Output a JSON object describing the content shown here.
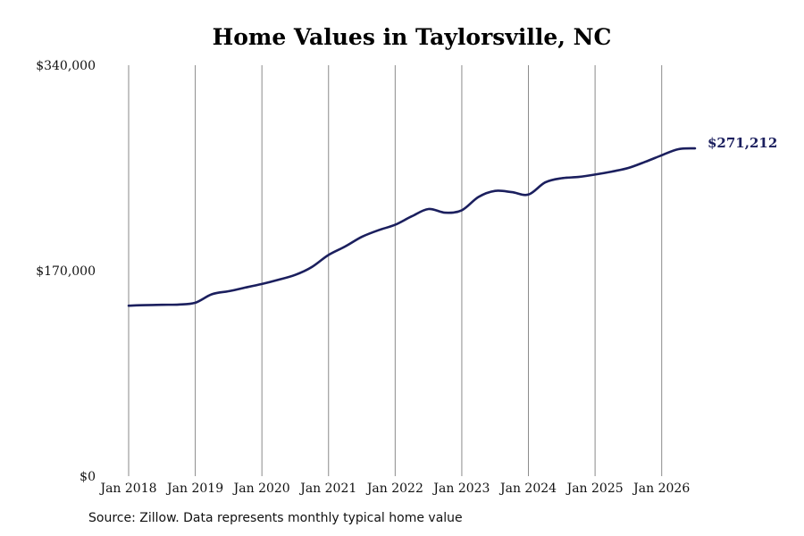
{
  "chart_data": {
    "type": "line",
    "title": "Home Values in Taylorsville, NC",
    "xlabel": "",
    "ylabel": "",
    "y_ticks": [
      "$0",
      "$170,000",
      "$340,000"
    ],
    "y_tick_values": [
      0,
      170000,
      340000
    ],
    "ylim": [
      0,
      340000
    ],
    "x_ticks": [
      "Jan 2018",
      "Jan 2019",
      "Jan 2020",
      "Jan 2021",
      "Jan 2022",
      "Jan 2023",
      "Jan 2024",
      "Jan 2025",
      "Jan 2026"
    ],
    "x_tick_dates": [
      "2018-01",
      "2019-01",
      "2020-01",
      "2021-01",
      "2022-01",
      "2023-01",
      "2024-01",
      "2025-01",
      "2026-01"
    ],
    "xlim": [
      "2018-01",
      "2026-07"
    ],
    "grid": "vertical",
    "line_color": "#1b1f5e",
    "end_label": "$271,212",
    "series": [
      {
        "points": [
          [
            "2018-01",
            141000
          ],
          [
            "2018-04",
            141500
          ],
          [
            "2018-07",
            141800
          ],
          [
            "2018-10",
            142000
          ],
          [
            "2019-01",
            143500
          ],
          [
            "2019-04",
            150500
          ],
          [
            "2019-07",
            153000
          ],
          [
            "2019-10",
            156000
          ],
          [
            "2020-01",
            159000
          ],
          [
            "2020-04",
            162500
          ],
          [
            "2020-07",
            166500
          ],
          [
            "2020-10",
            173000
          ],
          [
            "2021-01",
            183000
          ],
          [
            "2021-04",
            190000
          ],
          [
            "2021-07",
            198000
          ],
          [
            "2021-10",
            203500
          ],
          [
            "2022-01",
            208000
          ],
          [
            "2022-04",
            215000
          ],
          [
            "2022-07",
            221000
          ],
          [
            "2022-10",
            218000
          ],
          [
            "2023-01",
            220000
          ],
          [
            "2023-04",
            231000
          ],
          [
            "2023-07",
            236000
          ],
          [
            "2023-10",
            235000
          ],
          [
            "2024-01",
            233000
          ],
          [
            "2024-04",
            243000
          ],
          [
            "2024-07",
            246500
          ],
          [
            "2024-10",
            247500
          ],
          [
            "2025-01",
            249500
          ],
          [
            "2025-04",
            252000
          ],
          [
            "2025-07",
            255000
          ],
          [
            "2025-10",
            260000
          ],
          [
            "2026-01",
            265500
          ],
          [
            "2026-04",
            270500
          ],
          [
            "2026-07",
            271212
          ]
        ]
      }
    ]
  },
  "footer": {
    "source": "Source: Zillow. Data represents monthly typical home value"
  }
}
